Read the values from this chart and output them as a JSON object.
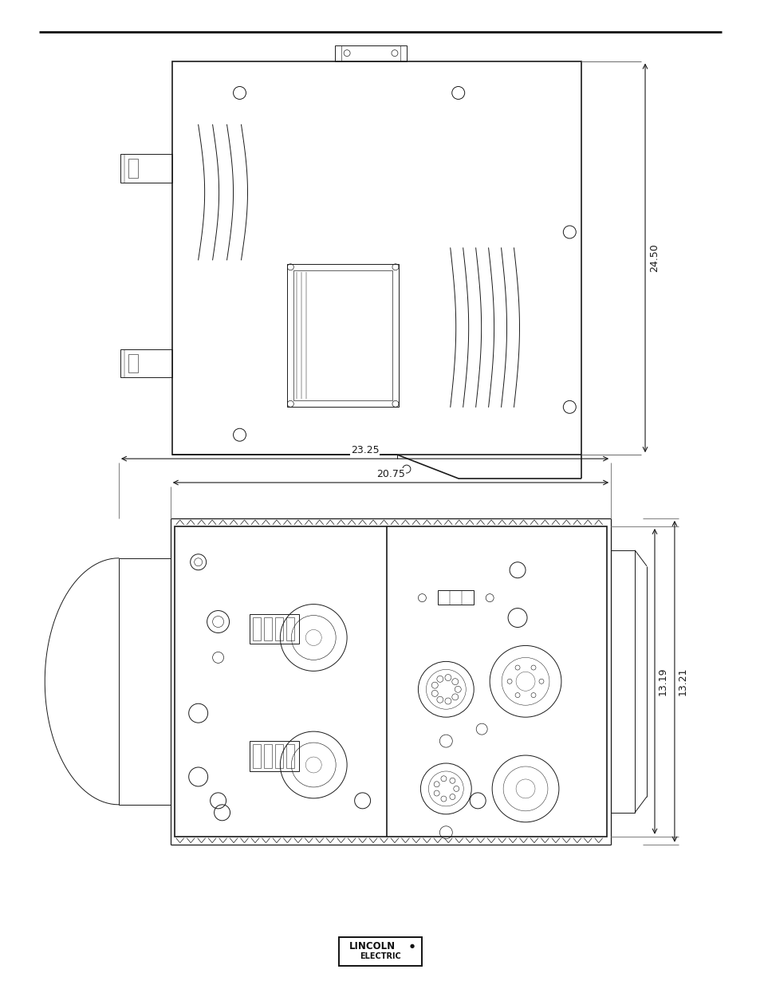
{
  "bg_color": "#ffffff",
  "line_color": "#1a1a1a",
  "dim_color": "#1a1a1a",
  "page_width": 9.54,
  "page_height": 12.35,
  "dim_24_50": "24.50",
  "dim_23_25": "23.25",
  "dim_20_75": "20.75",
  "dim_13_19": "13.19",
  "dim_13_21": "13.21",
  "logo_text1": "LINCOLN",
  "logo_text2": "ELECTRIC"
}
